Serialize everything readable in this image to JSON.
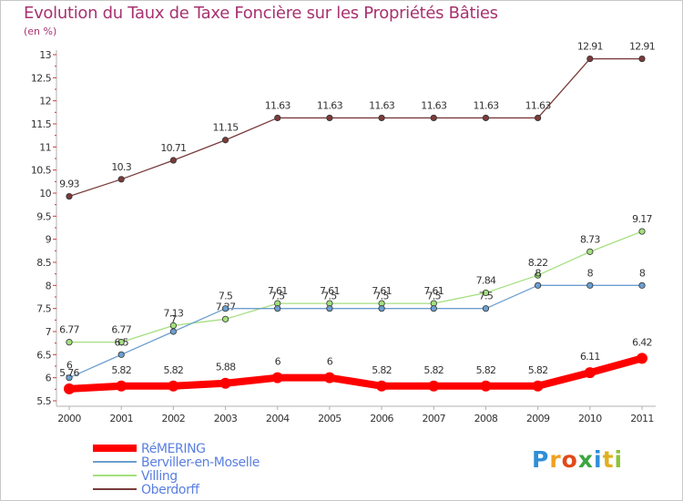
{
  "title": "Evolution du Taux de Taxe Foncière sur les Propriétés Bâties",
  "unit_label": "(en %)",
  "logo": {
    "text": "Proxiti",
    "letter_colors": [
      "#2f8fd8",
      "#f0a020",
      "#e04a1a",
      "#3aa640",
      "#2f8fd8",
      "#e0b020",
      "#8ac43a"
    ]
  },
  "chart_data": {
    "type": "line",
    "x": [
      "2000",
      "2001",
      "2002",
      "2003",
      "2004",
      "2005",
      "2006",
      "2007",
      "2008",
      "2009",
      "2010",
      "2011"
    ],
    "ylim": [
      5.5,
      13
    ],
    "yticks": [
      "5.5",
      "6",
      "6.5",
      "7",
      "7.5",
      "8",
      "8.5",
      "9",
      "9.5",
      "10",
      "10.5",
      "11",
      "11.5",
      "12",
      "12.5",
      "13"
    ],
    "grid": false,
    "legend_position": "bottom-left",
    "series": [
      {
        "name": "RéMERING",
        "color": "#ff0000",
        "values": [
          5.76,
          5.82,
          5.82,
          5.88,
          6,
          6,
          5.82,
          5.82,
          5.82,
          5.82,
          6.11,
          6.42
        ],
        "labels": [
          "5.76",
          "5.82",
          "5.82",
          "5.88",
          "6",
          "6",
          "5.82",
          "5.82",
          "5.82",
          "5.82",
          "6.11",
          "6.42"
        ]
      },
      {
        "name": "Berviller-en-Moselle",
        "color": "#6d9fcf",
        "values": [
          6,
          6.5,
          7,
          7.5,
          7.5,
          7.5,
          7.5,
          7.5,
          7.5,
          8,
          8,
          8
        ],
        "labels": [
          "6",
          "6.5",
          "7",
          "7.5",
          "7.5",
          "7.5",
          "7.5",
          "7.5",
          "7.5",
          "8",
          "8",
          "8"
        ]
      },
      {
        "name": "Villing",
        "color": "#a4df7f",
        "values": [
          6.77,
          6.77,
          7.13,
          7.27,
          7.61,
          7.61,
          7.61,
          7.61,
          7.84,
          8.22,
          8.73,
          9.17
        ],
        "labels": [
          "6.77",
          "6.77",
          "7.13",
          "7.27",
          "7.61",
          "7.61",
          "7.61",
          "7.61",
          "7.84",
          "8.22",
          "8.73",
          "9.17"
        ]
      },
      {
        "name": "Oberdorff",
        "color": "#7a3b3b",
        "values": [
          9.93,
          10.3,
          10.71,
          11.15,
          11.63,
          11.63,
          11.63,
          11.63,
          11.63,
          11.63,
          12.91,
          12.91
        ],
        "labels": [
          "9.93",
          "10.3",
          "10.71",
          "11.15",
          "11.63",
          "11.63",
          "11.63",
          "11.63",
          "11.63",
          "11.63",
          "12.91",
          "12.91"
        ]
      }
    ],
    "legend": [
      {
        "name": "RéMERING",
        "color": "#ff0000",
        "text_color": "#5a7fe0"
      },
      {
        "name": "Berviller-en-Moselle",
        "color": "#6d9fcf",
        "text_color": "#5a7fe0"
      },
      {
        "name": "Villing",
        "color": "#a4df7f",
        "text_color": "#5a7fe0"
      },
      {
        "name": "Oberdorff",
        "color": "#7a3b3b",
        "text_color": "#5a7fe0"
      }
    ]
  }
}
